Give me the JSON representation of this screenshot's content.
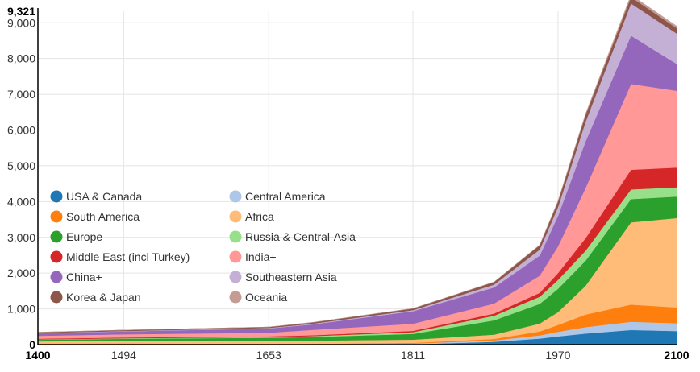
{
  "chart_data": {
    "type": "area",
    "stacked": true,
    "title": "",
    "xlabel": "",
    "ylabel": "",
    "xlim": [
      1400,
      2100
    ],
    "ylim": [
      0,
      9321
    ],
    "grid": true,
    "legend_placement": "lower-left",
    "x_tick_labels": [
      "1400",
      "1494",
      "1653",
      "1811",
      "1970",
      "2100"
    ],
    "x_tick_values": [
      1400,
      1494,
      1653,
      1811,
      1970,
      2100
    ],
    "x_tick_bold": [
      true,
      false,
      false,
      false,
      false,
      true
    ],
    "y_tick_labels": [
      "0",
      "1,000",
      "2,000",
      "3,000",
      "4,000",
      "5,000",
      "6,000",
      "7,000",
      "8,000",
      "9,000",
      "9,321"
    ],
    "y_tick_values": [
      0,
      1000,
      2000,
      3000,
      4000,
      5000,
      6000,
      7000,
      8000,
      9000,
      9321
    ],
    "y_tick_bold": [
      true,
      false,
      false,
      false,
      false,
      false,
      false,
      false,
      false,
      false,
      true
    ],
    "x": [
      1400,
      1494,
      1653,
      1700,
      1811,
      1900,
      1950,
      1970,
      2000,
      2050,
      2100
    ],
    "series": [
      {
        "name": "USA & Canada",
        "color": "#1f77b4",
        "values": [
          2,
          3,
          3,
          3,
          10,
          80,
          170,
          230,
          310,
          410,
          380
        ]
      },
      {
        "name": "Central America",
        "color": "#aec7e8",
        "values": [
          15,
          15,
          10,
          10,
          20,
          40,
          90,
          130,
          180,
          230,
          220
        ]
      },
      {
        "name": "South America",
        "color": "#ff7f0e",
        "values": [
          15,
          15,
          10,
          10,
          20,
          40,
          110,
          190,
          350,
          480,
          440
        ]
      },
      {
        "name": "Africa",
        "color": "#ffbb78",
        "values": [
          60,
          70,
          90,
          90,
          90,
          120,
          220,
          360,
          800,
          2300,
          2500
        ]
      },
      {
        "name": "Europe",
        "color": "#2ca02c",
        "values": [
          45,
          60,
          80,
          100,
          160,
          400,
          550,
          650,
          700,
          650,
          600
        ]
      },
      {
        "name": "Russia & Central-Asia",
        "color": "#98df8a",
        "values": [
          10,
          15,
          20,
          25,
          50,
          130,
          200,
          250,
          280,
          270,
          260
        ]
      },
      {
        "name": "Middle East (incl Turkey)",
        "color": "#d62728",
        "values": [
          20,
          22,
          20,
          25,
          35,
          60,
          110,
          190,
          350,
          550,
          550
        ]
      },
      {
        "name": "India+",
        "color": "#ff9896",
        "values": [
          80,
          90,
          100,
          150,
          200,
          280,
          480,
          750,
          1400,
          2400,
          2150
        ]
      },
      {
        "name": "China+",
        "color": "#9467bd",
        "values": [
          70,
          80,
          120,
          150,
          350,
          450,
          560,
          850,
          1300,
          1350,
          750
        ]
      },
      {
        "name": "Southeastern Asia",
        "color": "#c5b0d5",
        "values": [
          10,
          12,
          15,
          20,
          30,
          80,
          170,
          250,
          550,
          900,
          850
        ]
      },
      {
        "name": "Korea & Japan",
        "color": "#8c564b",
        "values": [
          20,
          25,
          25,
          35,
          45,
          70,
          120,
          150,
          190,
          180,
          150
        ]
      },
      {
        "name": "Oceania",
        "color": "#c49c94",
        "values": [
          1,
          1,
          1,
          1,
          2,
          5,
          12,
          20,
          30,
          60,
          60
        ]
      }
    ]
  }
}
